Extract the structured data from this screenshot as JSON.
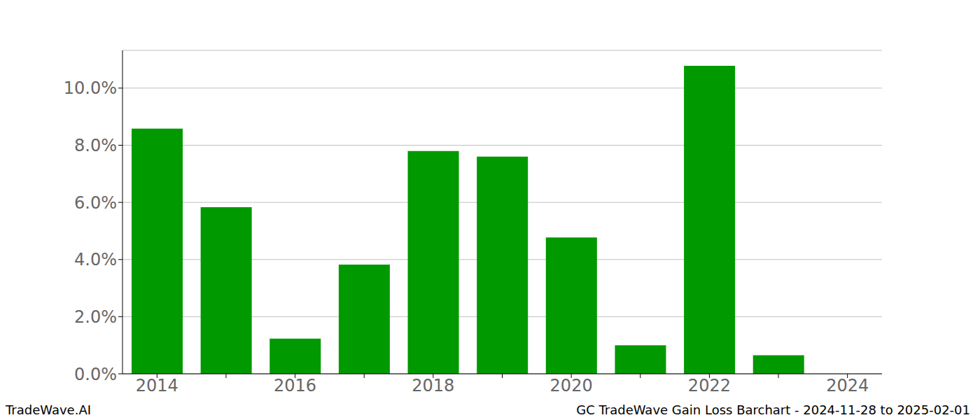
{
  "chart_data": {
    "type": "bar",
    "categories": [
      "2014",
      null,
      "2016",
      null,
      "2018",
      null,
      "2020",
      null,
      "2022",
      null,
      "2024"
    ],
    "values": [
      8.58,
      5.83,
      1.23,
      3.82,
      7.8,
      7.6,
      4.77,
      1.0,
      10.78,
      0.65,
      0
    ],
    "color": "#009900",
    "ylim": [
      0,
      11.32
    ],
    "yticks": [
      {
        "value": 0,
        "label": "0.0%"
      },
      {
        "value": 2,
        "label": "2.0%"
      },
      {
        "value": 4,
        "label": "4.0%"
      },
      {
        "value": 6,
        "label": "6.0%"
      },
      {
        "value": 8,
        "label": "8.0%"
      },
      {
        "value": 10,
        "label": "10.0%"
      }
    ],
    "grid": true,
    "annotations": [
      "TradeWave.AI",
      "GC TradeWave Gain Loss Barchart - 2024-11-28 to 2025-02-01"
    ]
  }
}
